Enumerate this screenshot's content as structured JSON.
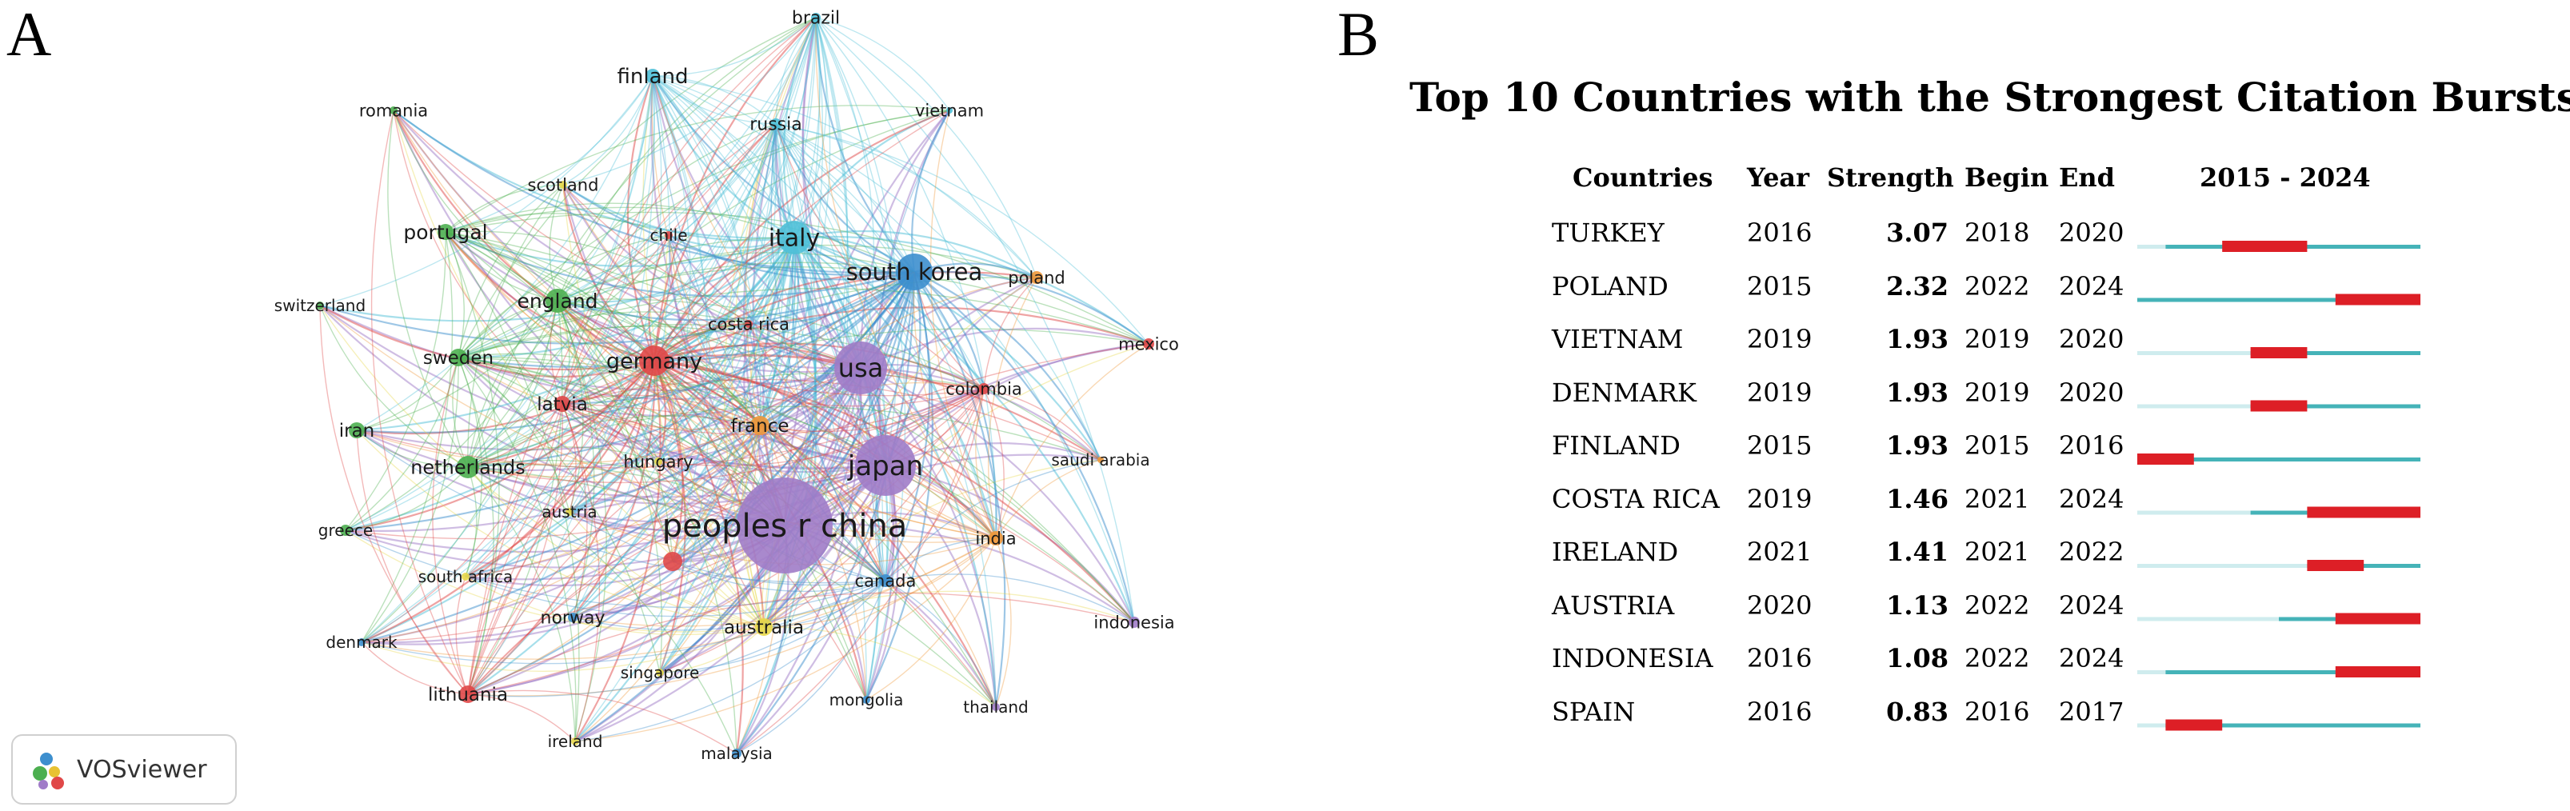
{
  "panel_a": {
    "letter": "A",
    "badge_label": "VOSviewer",
    "badge_icon": "vosviewer-logo-icon",
    "nodes": [
      {
        "id": "brazil",
        "label": "brazil",
        "cluster": "cyan"
      },
      {
        "id": "finland",
        "label": "finland",
        "cluster": "cyan"
      },
      {
        "id": "vietnam",
        "label": "vietnam",
        "cluster": "cyan"
      },
      {
        "id": "russia",
        "label": "russia",
        "cluster": "cyan"
      },
      {
        "id": "romania",
        "label": "romania",
        "cluster": "green"
      },
      {
        "id": "scotland",
        "label": "scotland",
        "cluster": "yellow"
      },
      {
        "id": "portugal",
        "label": "portugal",
        "cluster": "green"
      },
      {
        "id": "chile",
        "label": "chile",
        "cluster": "red"
      },
      {
        "id": "italy",
        "label": "italy",
        "cluster": "cyan"
      },
      {
        "id": "south_korea",
        "label": "south korea",
        "cluster": "blue"
      },
      {
        "id": "poland",
        "label": "poland",
        "cluster": "orange"
      },
      {
        "id": "switzerland",
        "label": "switzerland",
        "cluster": "green"
      },
      {
        "id": "england",
        "label": "england",
        "cluster": "green"
      },
      {
        "id": "costa_rica",
        "label": "costa rica",
        "cluster": "red"
      },
      {
        "id": "mexico",
        "label": "mexico",
        "cluster": "red"
      },
      {
        "id": "sweden",
        "label": "sweden",
        "cluster": "green"
      },
      {
        "id": "germany",
        "label": "germany",
        "cluster": "red"
      },
      {
        "id": "usa",
        "label": "usa",
        "cluster": "purple"
      },
      {
        "id": "latvia",
        "label": "latvia",
        "cluster": "red"
      },
      {
        "id": "colombia",
        "label": "colombia",
        "cluster": "red"
      },
      {
        "id": "iran",
        "label": "iran",
        "cluster": "green"
      },
      {
        "id": "france",
        "label": "france",
        "cluster": "orange"
      },
      {
        "id": "netherlands",
        "label": "netherlands",
        "cluster": "green"
      },
      {
        "id": "hungary",
        "label": "hungary",
        "cluster": "yellow"
      },
      {
        "id": "japan",
        "label": "japan",
        "cluster": "purple"
      },
      {
        "id": "saudi_arabia",
        "label": "saudi arabia",
        "cluster": "orange"
      },
      {
        "id": "austria",
        "label": "austria",
        "cluster": "yellow"
      },
      {
        "id": "peoples_r_china",
        "label": "peoples r china",
        "cluster": "purple"
      },
      {
        "id": "greece",
        "label": "greece",
        "cluster": "green"
      },
      {
        "id": "india",
        "label": "india",
        "cluster": "orange"
      },
      {
        "id": "south_africa",
        "label": "south africa",
        "cluster": "yellow"
      },
      {
        "id": "canada",
        "label": "canada",
        "cluster": "blue"
      },
      {
        "id": "unlabeled_red",
        "label": "",
        "cluster": "red"
      },
      {
        "id": "norway",
        "label": "norway",
        "cluster": "blue"
      },
      {
        "id": "australia",
        "label": "australia",
        "cluster": "yellow"
      },
      {
        "id": "indonesia",
        "label": "indonesia",
        "cluster": "purple"
      },
      {
        "id": "denmark",
        "label": "denmark",
        "cluster": "blue"
      },
      {
        "id": "singapore",
        "label": "singapore",
        "cluster": "yellow"
      },
      {
        "id": "lithuania",
        "label": "lithuania",
        "cluster": "red"
      },
      {
        "id": "mongolia",
        "label": "mongolia",
        "cluster": "blue"
      },
      {
        "id": "thailand",
        "label": "thailand",
        "cluster": "purple"
      },
      {
        "id": "ireland",
        "label": "ireland",
        "cluster": "yellow"
      },
      {
        "id": "malaysia",
        "label": "malaysia",
        "cluster": "blue"
      }
    ],
    "cluster_colors": {
      "cyan": "#4fc0d8",
      "blue": "#3d8fce",
      "green": "#4caf50",
      "red": "#e04848",
      "purple": "#a07cc8",
      "orange": "#f0983a",
      "yellow": "#e8d84a"
    }
  },
  "panel_b": {
    "letter": "B",
    "title": "Top 10 Countries with the Strongest Citation Bursts",
    "headers": {
      "countries": "Countries",
      "year": "Year",
      "strength": "Strength",
      "begin": "Begin",
      "end": "End",
      "range": "2015 - 2024"
    },
    "timeline": {
      "start": 2015,
      "end": 2024
    },
    "colors": {
      "before": "#cfecee",
      "active": "#45b3b8",
      "burst": "#dd1f26"
    },
    "rows": [
      {
        "country": "TURKEY",
        "year": "2016",
        "strength": "3.07",
        "begin": "2018",
        "end": "2020"
      },
      {
        "country": "POLAND",
        "year": "2015",
        "strength": "2.32",
        "begin": "2022",
        "end": "2024"
      },
      {
        "country": "VIETNAM",
        "year": "2019",
        "strength": "1.93",
        "begin": "2019",
        "end": "2020"
      },
      {
        "country": "DENMARK",
        "year": "2019",
        "strength": "1.93",
        "begin": "2019",
        "end": "2020"
      },
      {
        "country": "FINLAND",
        "year": "2015",
        "strength": "1.93",
        "begin": "2015",
        "end": "2016"
      },
      {
        "country": "COSTA RICA",
        "year": "2019",
        "strength": "1.46",
        "begin": "2021",
        "end": "2024"
      },
      {
        "country": "IRELAND",
        "year": "2021",
        "strength": "1.41",
        "begin": "2021",
        "end": "2022"
      },
      {
        "country": "AUSTRIA",
        "year": "2020",
        "strength": "1.13",
        "begin": "2022",
        "end": "2024"
      },
      {
        "country": "INDONESIA",
        "year": "2016",
        "strength": "1.08",
        "begin": "2022",
        "end": "2024"
      },
      {
        "country": "SPAIN",
        "year": "2016",
        "strength": "0.83",
        "begin": "2016",
        "end": "2017"
      }
    ]
  }
}
